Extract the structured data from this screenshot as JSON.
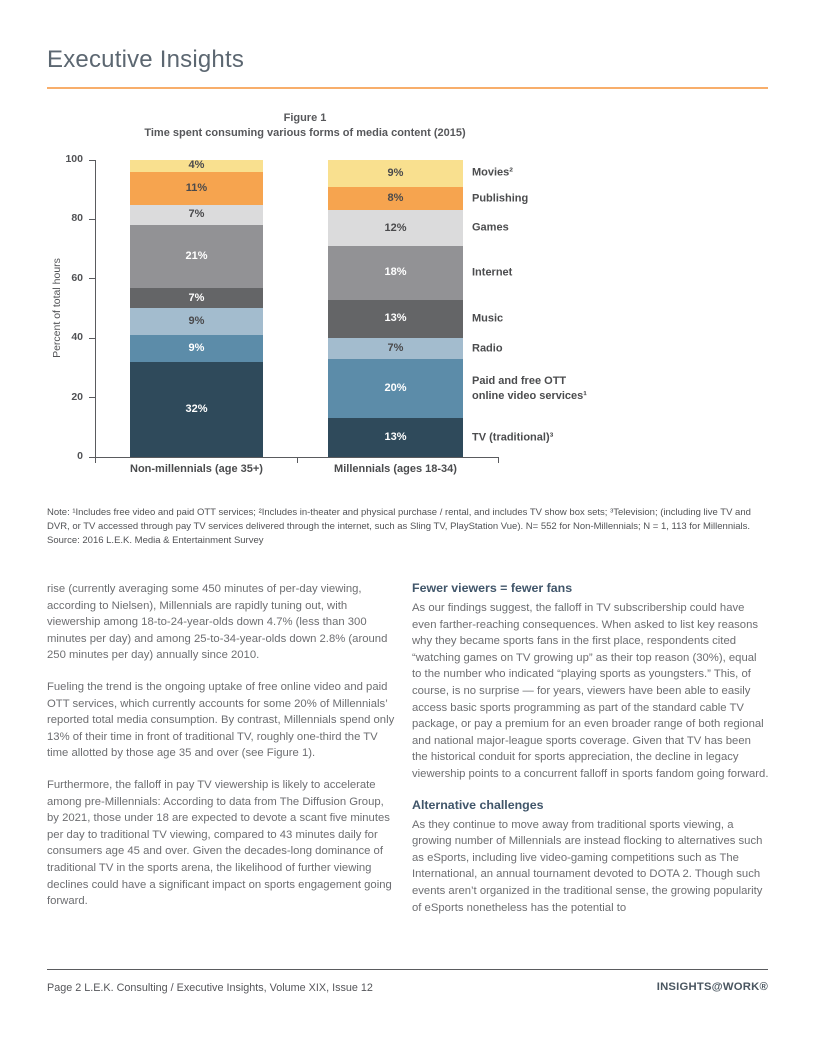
{
  "header": {
    "title": "Executive Insights",
    "accent_color": "#F8AE6B"
  },
  "figure": {
    "label": "Figure 1",
    "title": "Time spent consuming various forms of media content (2015)"
  },
  "chart_data": {
    "type": "bar",
    "stacked": true,
    "title": "Time spent consuming various forms of media content (2015)",
    "ylabel": "Percent of total hours",
    "ylim": [
      0,
      100
    ],
    "yticks": [
      0,
      20,
      40,
      60,
      80,
      100
    ],
    "grid": false,
    "legend_position": "right",
    "categories": [
      "Non-millennials (age 35+)",
      "Millennials (ages 18-34)"
    ],
    "series": [
      {
        "name": "Movies²",
        "values": [
          4,
          9
        ],
        "color": "#F9E08F",
        "text": "#4A4A4C"
      },
      {
        "name": "Publishing",
        "values": [
          11,
          8
        ],
        "color": "#F6A44F",
        "text": "#4A4A4C"
      },
      {
        "name": "Games",
        "values": [
          7,
          12
        ],
        "color": "#DBDBDC",
        "text": "#4A4A4C"
      },
      {
        "name": "Internet",
        "values": [
          21,
          18
        ],
        "color": "#929295",
        "text": "#FFFFFF"
      },
      {
        "name": "Music",
        "values": [
          7,
          13
        ],
        "color": "#646567",
        "text": "#FFFFFF"
      },
      {
        "name": "Radio",
        "values": [
          9,
          7
        ],
        "color": "#A3BCCE",
        "text": "#4A4A4C"
      },
      {
        "name": "Paid and free OTT\nonline video services¹",
        "values": [
          9,
          20
        ],
        "color": "#5C8CA9",
        "text": "#FFFFFF"
      },
      {
        "name": "TV (traditional)³",
        "values": [
          32,
          13
        ],
        "color": "#2F4A5B",
        "text": "#FFFFFF"
      }
    ]
  },
  "note": {
    "text": "Note: ¹Includes free video and paid OTT services; ²Includes in-theater and physical purchase / rental, and includes TV show box sets; ³Television; (including live TV and DVR, or TV accessed through pay TV services delivered through the internet, such as Sling TV, PlayStation Vue). N= 552 for Non-Millennials; N = 1, 113 for Millennials.",
    "source": "Source: 2016 L.E.K. Media & Entertainment Survey"
  },
  "article": {
    "left_column": {
      "paragraphs": [
        "rise (currently averaging some 450 minutes of per-day viewing, according to Nielsen), Millennials are rapidly tuning out, with viewership among 18-to-24-year-olds down 4.7% (less than 300 minutes per day) and among 25-to-34-year-olds down 2.8% (around 250 minutes per day) annually since 2010.",
        "Fueling the trend is the ongoing uptake of free online video and paid OTT services, which currently accounts for some 20% of Millennials’ reported total media consumption. By contrast, Millennials spend only 13% of their time in front of traditional TV, roughly one-third the TV time allotted by those age 35 and over (see Figure 1).",
        "Furthermore, the falloff in pay TV viewership is likely to accelerate among pre-Millennials: According to data from The Diffusion Group, by 2021, those under 18 are expected to devote a scant five minutes per day to traditional TV viewing, compared to 43 minutes daily for consumers age 45 and over. Given the decades-long dominance of traditional TV in the sports arena, the likelihood of further viewing declines could have a significant impact on sports engagement going forward."
      ]
    },
    "right_column": {
      "sections": [
        {
          "heading": "Fewer viewers = fewer fans",
          "paragraph": "As our findings suggest, the falloff in TV subscribership could have even farther-reaching consequences. When asked to list key reasons why they became sports fans in the first place, respondents cited “watching games on TV growing up” as their top reason (30%), equal to the number who indicated “playing sports as youngsters.” This, of course, is no surprise — for years, viewers have been able to easily access basic sports programming as part of the standard cable TV package, or pay a premium for an even broader range of both regional and national major-league sports coverage. Given that TV has been the historical conduit for sports appreciation, the decline in legacy viewership points to a concurrent falloff in sports fandom going forward."
        },
        {
          "heading": "Alternative challenges",
          "paragraph": "As they continue to move away from traditional sports viewing, a growing number of Millennials are instead flocking to alternatives such as eSports, including live video-gaming competitions such as The International, an annual tournament devoted to DOTA 2. Though such events aren’t organized in the traditional sense, the growing popularity of eSports nonetheless has the potential to"
        }
      ]
    }
  },
  "footer": {
    "left": "Page 2  L.E.K. Consulting / Executive Insights, Volume XIX, Issue 12",
    "right": "INSIGHTS@WORK®"
  }
}
